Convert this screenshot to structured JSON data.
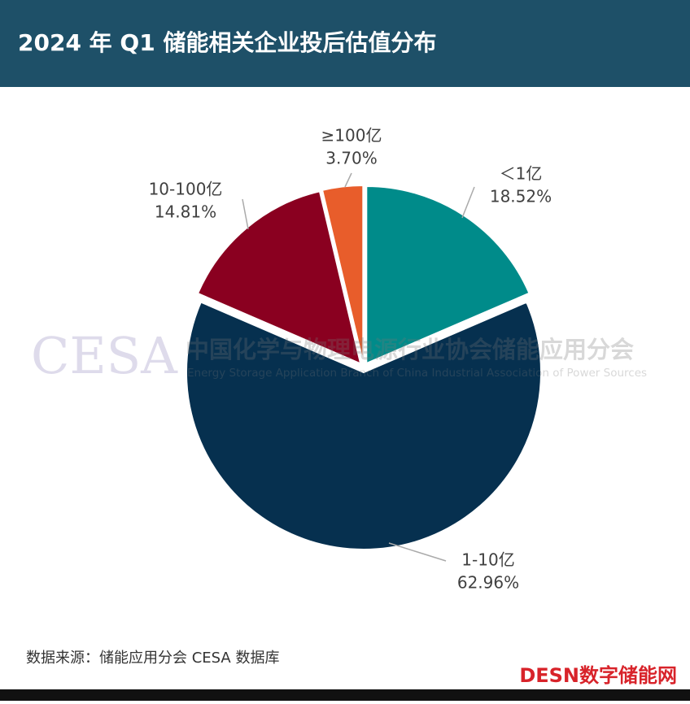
{
  "chart_data": {
    "type": "pie",
    "title": "2024 年 Q1 储能相关企业投后估值分布",
    "categories": [
      "＜1亿",
      "1-10亿",
      "10-100亿",
      "≥100亿"
    ],
    "values": [
      18.52,
      62.96,
      14.81,
      3.7
    ],
    "value_labels": [
      "18.52%",
      "62.96%",
      "14.81%",
      "3.70%"
    ],
    "colors": [
      "#008b8a",
      "#06304f",
      "#8a0020",
      "#e85d2b"
    ]
  },
  "watermark": {
    "logo": "CESA",
    "name": "中国化学与物理电源行业协会储能应用分会",
    "name_en": "Energy Storage Application Branch of China Industrial Association of Power Sources"
  },
  "footer": {
    "source": "数据来源：储能应用分会 CESA 数据库",
    "brand": "DESN数字储能网"
  }
}
